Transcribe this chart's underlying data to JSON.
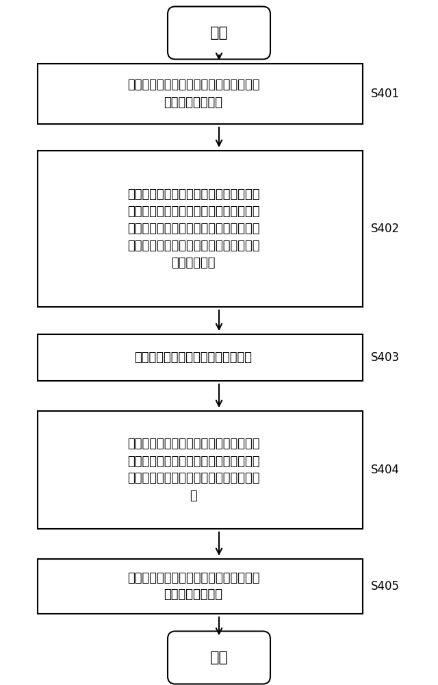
{
  "bg_color": "#ffffff",
  "border_color": "#000000",
  "text_color": "#000000",
  "arrow_color": "#000000",
  "title": "开始",
  "end_label": "结束",
  "steps": [
    {
      "label": "通过遗传算法从散射校正图像中得到各个\n投影圆的中心坐标",
      "step_id": "S401"
    },
    {
      "label": "从亮场图像中得到与各个投影圆相对应的\n初始射线强度，并从散射校正图像中得到\n与各个投影圆相对应的穿过散射校正器后\n的射线强度，从衰减投影图像中得到校正\n的总射线强度",
      "step_id": "S402"
    },
    {
      "label": "从投影图像集中获取物体总射线强度",
      "step_id": "S403"
    },
    {
      "label": "通过初始射线强度、穿过散射校正器后的\n射线强度、校正的总射线强度以及物体总\n射线强度得到衰减投影图像中的散射值分\n布",
      "step_id": "S404"
    },
    {
      "label": "对散射值分布进行二维插值及角度插值得\n到散射强度分布图",
      "step_id": "S405"
    }
  ],
  "fig_width": 6.4,
  "fig_height": 10.0,
  "dpi": 100
}
